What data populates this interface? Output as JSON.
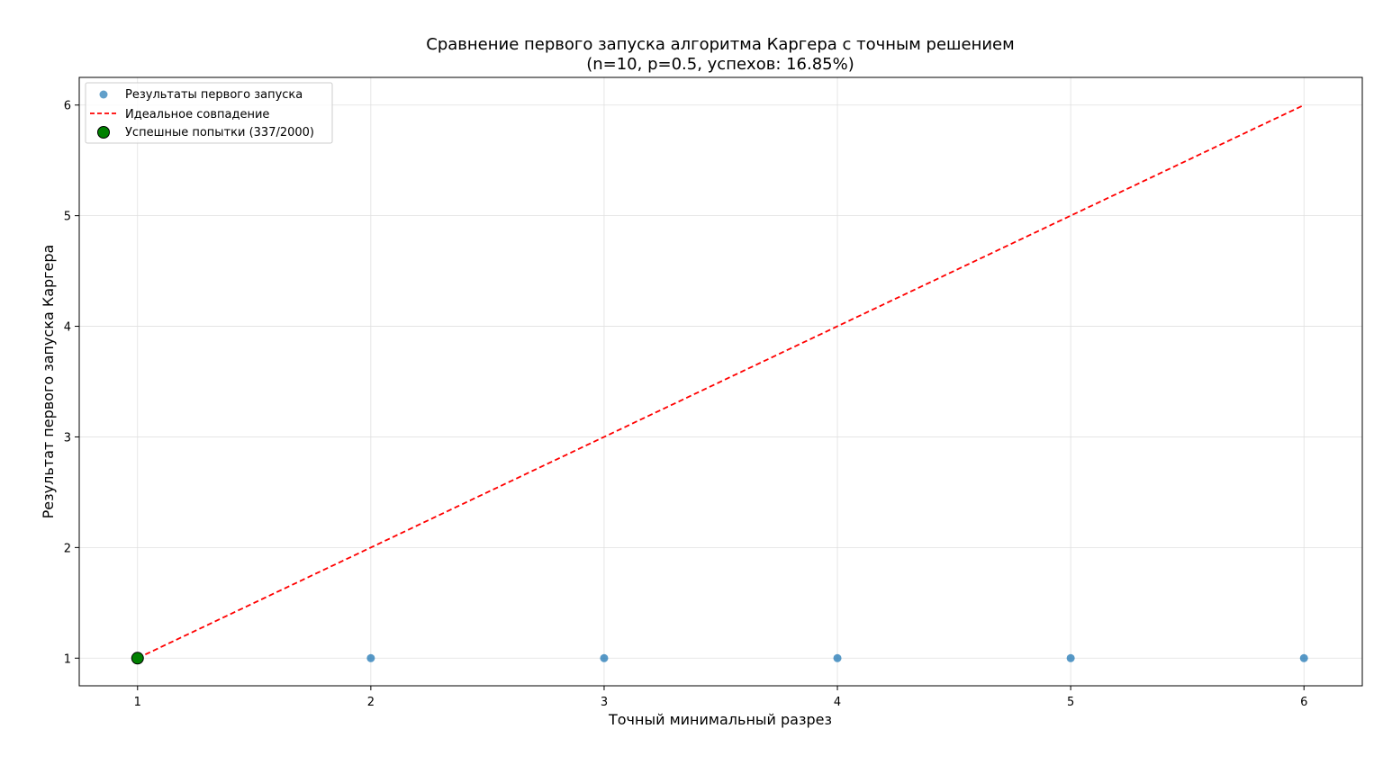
{
  "chart_data": {
    "type": "scatter",
    "title": "Сравнение первого запуска алгоритма Каргера с точным решением",
    "subtitle": "(n=10, p=0.5, успехов: 16.85%)",
    "xlabel": "Точный минимальный разрез",
    "ylabel": "Результат первого запуска Каргера",
    "xlim": [
      0.75,
      6.25
    ],
    "ylim": [
      0.75,
      6.25
    ],
    "x_ticks": [
      "1",
      "2",
      "3",
      "4",
      "5",
      "6"
    ],
    "y_ticks": [
      "1",
      "2",
      "3",
      "4",
      "5",
      "6"
    ],
    "grid": true,
    "legend_position": "top-left",
    "series": [
      {
        "name": "Результаты первого запуска",
        "kind": "scatter",
        "color": "#1f77b4",
        "points": [
          {
            "x": 1,
            "y": 1
          },
          {
            "x": 2,
            "y": 1
          },
          {
            "x": 3,
            "y": 1
          },
          {
            "x": 4,
            "y": 1
          },
          {
            "x": 5,
            "y": 1
          },
          {
            "x": 6,
            "y": 1
          }
        ]
      },
      {
        "name": "Идеальное совпадение",
        "kind": "line",
        "style": "dashed",
        "color": "#ff0000",
        "points": [
          {
            "x": 1,
            "y": 1
          },
          {
            "x": 6,
            "y": 6
          }
        ]
      },
      {
        "name": "Успешные попытки (337/2000)",
        "kind": "scatter",
        "color": "#008000",
        "edge_color": "#000000",
        "points": [
          {
            "x": 1,
            "y": 1
          }
        ]
      }
    ]
  }
}
